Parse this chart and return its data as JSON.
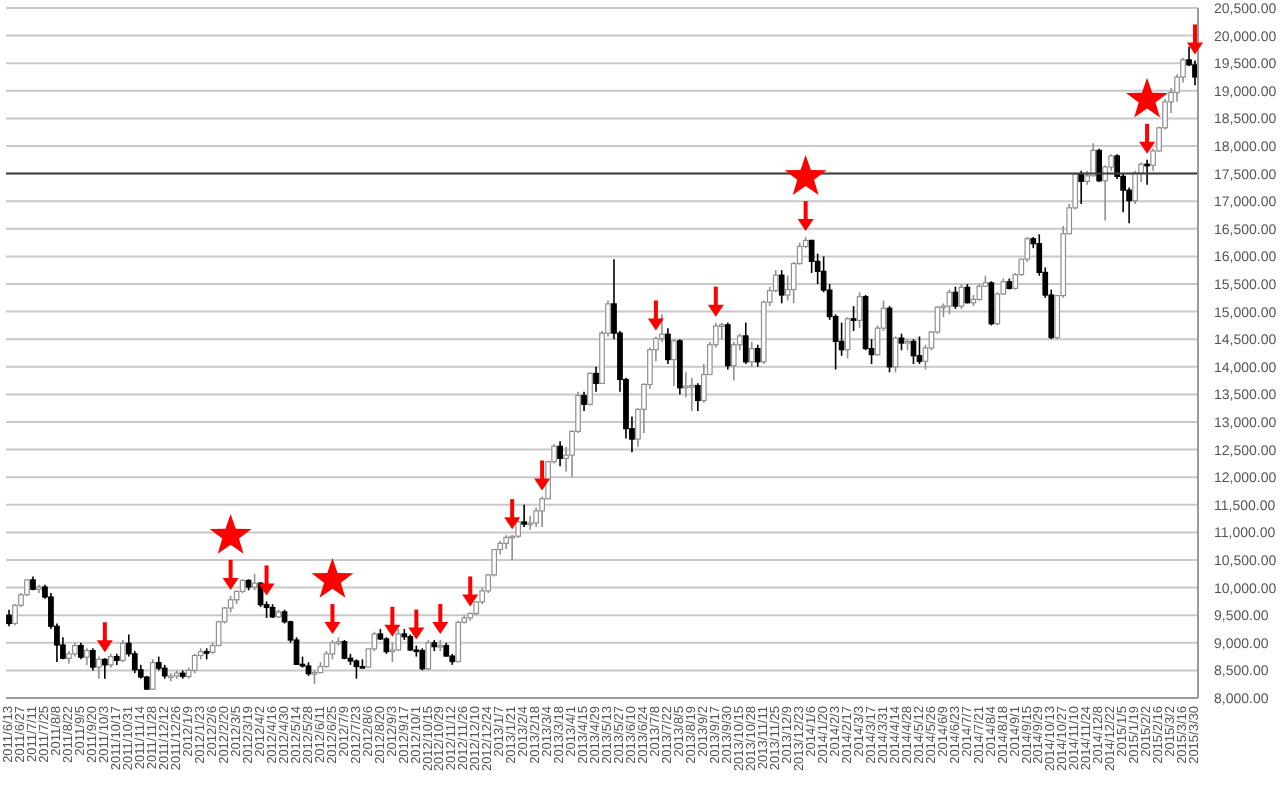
{
  "chart_data": {
    "type": "candlestick",
    "categories": [
      "2011/6/13",
      null,
      "2011/6/27",
      null,
      "2011/7/11",
      null,
      "2011/7/25",
      null,
      "2011/8/8",
      null,
      "2011/8/22",
      null,
      "2011/9/5",
      null,
      "2011/9/20",
      null,
      "2011/10/3",
      null,
      "2011/10/17",
      null,
      "2011/10/31",
      null,
      "2011/11/14",
      null,
      "2011/11/28",
      null,
      "2011/12/12",
      null,
      "2011/12/26",
      null,
      "2012/1/9",
      null,
      "2012/1/23",
      null,
      "2012/2/6",
      null,
      "2012/2/20",
      null,
      "2012/3/5",
      null,
      "2012/3/19",
      null,
      "2012/4/2",
      null,
      "2012/4/16",
      null,
      "2012/4/30",
      null,
      "2012/5/14",
      null,
      "2012/5/28",
      null,
      "2012/6/11",
      null,
      "2012/6/25",
      null,
      "2012/7/9",
      null,
      "2012/7/23",
      null,
      "2012/8/6",
      null,
      "2012/8/20",
      null,
      "2012/9/3",
      null,
      "2012/9/17",
      null,
      "2012/10/1",
      null,
      "2012/10/15",
      null,
      "2012/10/29",
      null,
      "2012/11/12",
      null,
      "2012/11/26",
      null,
      "2012/12/10",
      null,
      "2012/12/24",
      null,
      "2013/1/7",
      null,
      "2013/1/21",
      null,
      "2013/2/4",
      null,
      "2013/2/18",
      null,
      "2013/3/4",
      null,
      "2013/3/18",
      null,
      "2013/4/1",
      null,
      "2013/4/15",
      null,
      "2013/4/29",
      null,
      "2013/5/13",
      null,
      "2013/5/27",
      null,
      "2013/6/10",
      null,
      "2013/6/24",
      null,
      "2013/7/8",
      null,
      "2013/7/22",
      null,
      "2013/8/5",
      null,
      "2013/8/19",
      null,
      "2013/9/2",
      null,
      "2013/9/17",
      null,
      "2013/9/30",
      null,
      "2013/10/15",
      null,
      "2013/10/28",
      null,
      "2013/11/11",
      null,
      "2013/11/25",
      null,
      "2013/12/9",
      null,
      "2013/12/23",
      null,
      "2014/1/6",
      null,
      "2014/1/20",
      null,
      "2014/2/3",
      null,
      "2014/2/17",
      null,
      "2014/3/3",
      null,
      "2014/3/17",
      null,
      "2014/3/31",
      null,
      "2014/4/14",
      null,
      "2014/4/28",
      null,
      "2014/5/12",
      null,
      "2014/5/26",
      null,
      "2014/6/9",
      null,
      "2014/6/23",
      null,
      "2014/7/7",
      null,
      "2014/7/21",
      null,
      "2014/8/4",
      null,
      "2014/8/18",
      null,
      "2014/9/1",
      null,
      "2014/9/15",
      null,
      "2014/9/29",
      null,
      "2014/10/13",
      null,
      "2014/10/27",
      null,
      "2014/11/10",
      null,
      "2014/11/24",
      null,
      "2014/12/8",
      null,
      "2014/12/22",
      null,
      "2015/1/5",
      null,
      "2015/1/19",
      null,
      "2015/2/2",
      null,
      "2015/2/16",
      null,
      "2015/3/2",
      null,
      "2015/3/16",
      null,
      "2015/3/30"
    ],
    "ohlc": [
      [
        9500,
        9600,
        9300,
        9350
      ],
      [
        9350,
        9700,
        9320,
        9680
      ],
      [
        9680,
        9900,
        9650,
        9870
      ],
      [
        9870,
        10150,
        9850,
        10140
      ],
      [
        10140,
        10200,
        9950,
        9970
      ],
      [
        9970,
        10050,
        9900,
        10010
      ],
      [
        10010,
        10050,
        9800,
        9830
      ],
      [
        9830,
        9900,
        9250,
        9300
      ],
      [
        9300,
        9350,
        8650,
        8960
      ],
      [
        8960,
        9100,
        8700,
        8720
      ],
      [
        8720,
        8850,
        8620,
        8800
      ],
      [
        8800,
        9000,
        8750,
        8950
      ],
      [
        8950,
        9000,
        8700,
        8740
      ],
      [
        8740,
        8900,
        8600,
        8860
      ],
      [
        8860,
        8900,
        8500,
        8560
      ],
      [
        8560,
        8750,
        8350,
        8700
      ],
      [
        8700,
        8720,
        8350,
        8600
      ],
      [
        8600,
        8800,
        8550,
        8750
      ],
      [
        8750,
        8800,
        8600,
        8680
      ],
      [
        8680,
        9050,
        8650,
        8990
      ],
      [
        8990,
        9150,
        8750,
        8800
      ],
      [
        8800,
        8850,
        8450,
        8510
      ],
      [
        8510,
        8600,
        8350,
        8380
      ],
      [
        8380,
        8400,
        8150,
        8160
      ],
      [
        8160,
        8700,
        8150,
        8640
      ],
      [
        8640,
        8750,
        8500,
        8540
      ],
      [
        8540,
        8600,
        8350,
        8400
      ],
      [
        8400,
        8450,
        8300,
        8400
      ],
      [
        8400,
        8500,
        8350,
        8450
      ],
      [
        8450,
        8500,
        8350,
        8390
      ],
      [
        8390,
        8550,
        8350,
        8500
      ],
      [
        8500,
        8800,
        8450,
        8770
      ],
      [
        8770,
        8900,
        8700,
        8840
      ],
      [
        8840,
        8900,
        8700,
        8830
      ],
      [
        8830,
        9000,
        8800,
        8950
      ],
      [
        8950,
        9400,
        8950,
        9380
      ],
      [
        9380,
        9650,
        9350,
        9630
      ],
      [
        9630,
        9850,
        9550,
        9780
      ],
      [
        9780,
        9950,
        9700,
        9930
      ],
      [
        9930,
        10150,
        9900,
        10130
      ],
      [
        10130,
        10150,
        9950,
        10010
      ],
      [
        10010,
        10250,
        9950,
        10080
      ],
      [
        10080,
        10100,
        9650,
        9690
      ],
      [
        9690,
        9750,
        9450,
        9640
      ],
      [
        9640,
        9700,
        9450,
        9470
      ],
      [
        9470,
        9600,
        9450,
        9560
      ],
      [
        9560,
        9600,
        9350,
        9380
      ],
      [
        9380,
        9400,
        9000,
        9050
      ],
      [
        9050,
        9100,
        8600,
        8610
      ],
      [
        8610,
        8750,
        8550,
        8580
      ],
      [
        8580,
        8650,
        8400,
        8440
      ],
      [
        8440,
        8500,
        8250,
        8460
      ],
      [
        8460,
        8650,
        8450,
        8570
      ],
      [
        8570,
        8850,
        8550,
        8800
      ],
      [
        8800,
        9050,
        8700,
        9000
      ],
      [
        9000,
        9100,
        8950,
        9020
      ],
      [
        9020,
        9050,
        8700,
        8720
      ],
      [
        8720,
        8800,
        8600,
        8670
      ],
      [
        8670,
        8700,
        8350,
        8570
      ],
      [
        8570,
        8700,
        8550,
        8560
      ],
      [
        8560,
        8900,
        8550,
        8890
      ],
      [
        8890,
        9200,
        8850,
        9160
      ],
      [
        9160,
        9250,
        9050,
        9070
      ],
      [
        9070,
        9100,
        8800,
        8840
      ],
      [
        8840,
        9000,
        8650,
        8870
      ],
      [
        8870,
        9250,
        8850,
        9160
      ],
      [
        9160,
        9250,
        9050,
        9110
      ],
      [
        9110,
        9150,
        8850,
        8870
      ],
      [
        8870,
        8950,
        8750,
        8860
      ],
      [
        8860,
        8900,
        8500,
        8530
      ],
      [
        8530,
        9050,
        8500,
        9000
      ],
      [
        9000,
        9050,
        8850,
        8930
      ],
      [
        8930,
        9050,
        8850,
        8950
      ],
      [
        8950,
        9000,
        8750,
        8760
      ],
      [
        8760,
        8800,
        8600,
        8660
      ],
      [
        8660,
        9400,
        8650,
        9370
      ],
      [
        9370,
        9500,
        9350,
        9450
      ],
      [
        9450,
        9550,
        9400,
        9530
      ],
      [
        9530,
        9750,
        9500,
        9740
      ],
      [
        9740,
        10000,
        9700,
        9940
      ],
      [
        9940,
        10250,
        9900,
        10230
      ],
      [
        10230,
        10700,
        10200,
        10690
      ],
      [
        10690,
        10850,
        10600,
        10800
      ],
      [
        10800,
        10950,
        10700,
        10910
      ],
      [
        10910,
        10950,
        10500,
        10930
      ],
      [
        10930,
        11250,
        10900,
        11190
      ],
      [
        11190,
        11500,
        11100,
        11150
      ],
      [
        11150,
        11300,
        11050,
        11170
      ],
      [
        11170,
        11450,
        11100,
        11390
      ],
      [
        11390,
        11650,
        11100,
        11610
      ],
      [
        11610,
        12300,
        11600,
        12280
      ],
      [
        12280,
        12600,
        12250,
        12560
      ],
      [
        12560,
        12650,
        12200,
        12340
      ],
      [
        12340,
        12550,
        12100,
        12400
      ],
      [
        12400,
        12850,
        12000,
        12830
      ],
      [
        12830,
        13550,
        12800,
        13480
      ],
      [
        13480,
        13550,
        13200,
        13320
      ],
      [
        13320,
        13900,
        13300,
        13880
      ],
      [
        13880,
        14000,
        13550,
        13700
      ],
      [
        13700,
        14650,
        13700,
        14610
      ],
      [
        14610,
        15200,
        14550,
        15140
      ],
      [
        15140,
        15950,
        14500,
        14610
      ],
      [
        14610,
        14650,
        13550,
        13770
      ],
      [
        13770,
        13800,
        12700,
        12880
      ],
      [
        12880,
        13100,
        12450,
        12690
      ],
      [
        12690,
        13250,
        12550,
        13230
      ],
      [
        13230,
        13700,
        12800,
        13680
      ],
      [
        13680,
        14350,
        13600,
        14310
      ],
      [
        14310,
        14550,
        14100,
        14510
      ],
      [
        14510,
        14950,
        14450,
        14590
      ],
      [
        14590,
        14700,
        14050,
        14130
      ],
      [
        14130,
        14500,
        13650,
        14470
      ],
      [
        14470,
        14500,
        13500,
        13620
      ],
      [
        13620,
        13900,
        13450,
        13650
      ],
      [
        13650,
        13800,
        13200,
        13660
      ],
      [
        13660,
        13700,
        13200,
        13390
      ],
      [
        13390,
        14050,
        13350,
        13860
      ],
      [
        13860,
        14450,
        13850,
        14400
      ],
      [
        14400,
        14800,
        14350,
        14740
      ],
      [
        14740,
        14800,
        14500,
        14760
      ],
      [
        14760,
        14800,
        13950,
        14020
      ],
      [
        14020,
        14450,
        13750,
        14400
      ],
      [
        14400,
        14600,
        14300,
        14560
      ],
      [
        14560,
        14800,
        14050,
        14090
      ],
      [
        14090,
        14450,
        14000,
        14330
      ],
      [
        14330,
        14400,
        14000,
        14090
      ],
      [
        14090,
        15200,
        14050,
        15170
      ],
      [
        15170,
        15450,
        15100,
        15380
      ],
      [
        15380,
        15750,
        15350,
        15660
      ],
      [
        15660,
        15750,
        15150,
        15300
      ],
      [
        15300,
        15650,
        15200,
        15400
      ],
      [
        15400,
        15900,
        15150,
        15870
      ],
      [
        15870,
        16250,
        15850,
        16180
      ],
      [
        16180,
        16350,
        16150,
        16290
      ],
      [
        16290,
        16300,
        15700,
        15910
      ],
      [
        15910,
        16050,
        15500,
        15730
      ],
      [
        15730,
        16000,
        15350,
        15390
      ],
      [
        15390,
        15500,
        14850,
        14910
      ],
      [
        14910,
        14950,
        13950,
        14460
      ],
      [
        14460,
        14800,
        14200,
        14310
      ],
      [
        14310,
        14900,
        14150,
        14870
      ],
      [
        14870,
        15100,
        14650,
        14840
      ],
      [
        14840,
        15350,
        14700,
        15270
      ],
      [
        15270,
        15300,
        14300,
        14330
      ],
      [
        14330,
        14500,
        14050,
        14220
      ],
      [
        14220,
        14750,
        14200,
        14700
      ],
      [
        14700,
        15200,
        14650,
        15060
      ],
      [
        15060,
        15100,
        13900,
        14000
      ],
      [
        14000,
        14550,
        13900,
        14520
      ],
      [
        14520,
        14600,
        14300,
        14430
      ],
      [
        14430,
        14500,
        14300,
        14460
      ],
      [
        14460,
        14500,
        14050,
        14200
      ],
      [
        14200,
        14550,
        14050,
        14100
      ],
      [
        14100,
        14400,
        13950,
        14340
      ],
      [
        14340,
        14650,
        14300,
        14630
      ],
      [
        14630,
        15100,
        14600,
        15080
      ],
      [
        15080,
        15150,
        14900,
        15100
      ],
      [
        15100,
        15400,
        14950,
        15350
      ],
      [
        15350,
        15450,
        15050,
        15100
      ],
      [
        15100,
        15500,
        15050,
        15440
      ],
      [
        15440,
        15500,
        15150,
        15160
      ],
      [
        15160,
        15300,
        15100,
        15220
      ],
      [
        15220,
        15500,
        15200,
        15460
      ],
      [
        15460,
        15650,
        15450,
        15520
      ],
      [
        15520,
        15550,
        14750,
        14780
      ],
      [
        14780,
        15350,
        14750,
        15320
      ],
      [
        15320,
        15600,
        15300,
        15540
      ],
      [
        15540,
        15600,
        15400,
        15420
      ],
      [
        15420,
        15700,
        15400,
        15670
      ],
      [
        15670,
        15950,
        15650,
        15950
      ],
      [
        15950,
        16350,
        15900,
        16320
      ],
      [
        16320,
        16350,
        16150,
        16230
      ],
      [
        16230,
        16400,
        15650,
        15710
      ],
      [
        15710,
        15800,
        15250,
        15300
      ],
      [
        15300,
        15400,
        14500,
        14530
      ],
      [
        14530,
        15300,
        14500,
        15290
      ],
      [
        15290,
        16550,
        15250,
        16410
      ],
      [
        16410,
        16950,
        16400,
        16880
      ],
      [
        16880,
        17500,
        16850,
        17490
      ],
      [
        17490,
        17550,
        16950,
        17360
      ],
      [
        17360,
        17550,
        17300,
        17460
      ],
      [
        17460,
        18050,
        17450,
        17920
      ],
      [
        17920,
        17950,
        17350,
        17370
      ],
      [
        17370,
        17650,
        16650,
        17620
      ],
      [
        17620,
        17850,
        17550,
        17820
      ],
      [
        17820,
        17850,
        17400,
        17450
      ],
      [
        17450,
        17500,
        16800,
        17200
      ],
      [
        17200,
        17250,
        16600,
        17010
      ],
      [
        17010,
        17550,
        16950,
        17510
      ],
      [
        17510,
        17700,
        17350,
        17670
      ],
      [
        17670,
        17750,
        17300,
        17650
      ],
      [
        17650,
        17950,
        17550,
        17910
      ],
      [
        17910,
        18350,
        17900,
        18330
      ],
      [
        18330,
        18850,
        18300,
        18800
      ],
      [
        18800,
        19050,
        18600,
        18970
      ],
      [
        18970,
        19300,
        18800,
        19250
      ],
      [
        19250,
        19600,
        19150,
        19560
      ],
      [
        19560,
        19800,
        19450,
        19470
      ],
      [
        19470,
        19550,
        19100,
        19250
      ]
    ],
    "ylim": [
      8000,
      20500
    ],
    "yticks": [
      {
        "value": 8000,
        "label": "8,000.00"
      },
      {
        "value": 8500,
        "label": "8,500.00"
      },
      {
        "value": 9000,
        "label": "9,000.00"
      },
      {
        "value": 9500,
        "label": "9,500.00"
      },
      {
        "value": 10000,
        "label": "10,000.00"
      },
      {
        "value": 10500,
        "label": "10,500.00"
      },
      {
        "value": 11000,
        "label": "11,000.00"
      },
      {
        "value": 11500,
        "label": "11,500.00"
      },
      {
        "value": 12000,
        "label": "12,000.00"
      },
      {
        "value": 12500,
        "label": "12,500.00"
      },
      {
        "value": 13000,
        "label": "13,000.00"
      },
      {
        "value": 13500,
        "label": "13,500.00"
      },
      {
        "value": 14000,
        "label": "14,000.00"
      },
      {
        "value": 14500,
        "label": "14,500.00"
      },
      {
        "value": 15000,
        "label": "15,000.00"
      },
      {
        "value": 15500,
        "label": "15,500.00"
      },
      {
        "value": 16000,
        "label": "16,000.00"
      },
      {
        "value": 16500,
        "label": "16,500.00"
      },
      {
        "value": 17000,
        "label": "17,000.00"
      },
      {
        "value": 17500,
        "label": "17,500.00"
      },
      {
        "value": 18000,
        "label": "18,000.00"
      },
      {
        "value": 18500,
        "label": "18,500.00"
      },
      {
        "value": 19000,
        "label": "19,000.00"
      },
      {
        "value": 19500,
        "label": "19,500.00"
      },
      {
        "value": 20000,
        "label": "20,000.00"
      },
      {
        "value": 20500,
        "label": "20,500.00"
      }
    ],
    "grid": "y",
    "ref_lines": [
      {
        "axis": "y",
        "value": 17500,
        "color": "#404040"
      }
    ]
  }
}
